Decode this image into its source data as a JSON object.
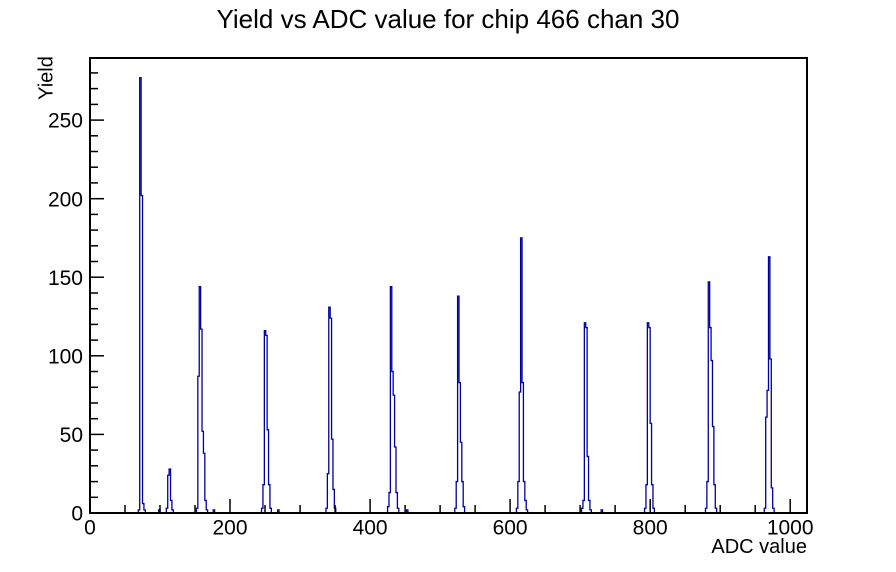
{
  "chart_data": {
    "type": "histogram",
    "title": "Yield vs ADC value for chip 466 chan 30",
    "xlabel": "ADC value",
    "ylabel": "Yield",
    "xlim": [
      0,
      1024
    ],
    "ylim": [
      0,
      289.5
    ],
    "x_major_ticks": [
      0,
      200,
      400,
      600,
      800,
      1000
    ],
    "x_minor_step": 50,
    "y_major_ticks": [
      0,
      50,
      100,
      150,
      200,
      250
    ],
    "y_minor_step": 10,
    "grid": false,
    "legend": "none",
    "line_color": "#0000a0",
    "bin_width": 2,
    "peaks": [
      {
        "start": 69,
        "heights": [
          2,
          277,
          202,
          6,
          2
        ]
      },
      {
        "start": 98,
        "heights": [
          2
        ]
      },
      {
        "start": 109,
        "heights": [
          3,
          24,
          28,
          8,
          2
        ]
      },
      {
        "start": 152,
        "heights": [
          3,
          87,
          144,
          117,
          52,
          38,
          8,
          2
        ]
      },
      {
        "start": 176,
        "heights": [
          2
        ]
      },
      {
        "start": 245,
        "heights": [
          3,
          18,
          116,
          113,
          53,
          18,
          3
        ]
      },
      {
        "start": 268,
        "heights": [
          2
        ]
      },
      {
        "start": 337,
        "heights": [
          3,
          25,
          131,
          124,
          47,
          15,
          3
        ]
      },
      {
        "start": 425,
        "heights": [
          4,
          13,
          144,
          90,
          75,
          42,
          13,
          3
        ]
      },
      {
        "start": 452,
        "heights": [
          2
        ]
      },
      {
        "start": 521,
        "heights": [
          3,
          20,
          138,
          83,
          45,
          20,
          4
        ]
      },
      {
        "start": 609,
        "heights": [
          3,
          20,
          77,
          175,
          83,
          20,
          8,
          2
        ]
      },
      {
        "start": 702,
        "heights": [
          3,
          8,
          121,
          118,
          36,
          8,
          2
        ]
      },
      {
        "start": 730,
        "heights": [
          2
        ]
      },
      {
        "start": 792,
        "heights": [
          3,
          18,
          121,
          118,
          57,
          18,
          3
        ]
      },
      {
        "start": 879,
        "heights": [
          3,
          20,
          147,
          118,
          97,
          55,
          18,
          3
        ]
      },
      {
        "start": 963,
        "heights": [
          3,
          61,
          78,
          163,
          98,
          16,
          3
        ]
      }
    ]
  }
}
